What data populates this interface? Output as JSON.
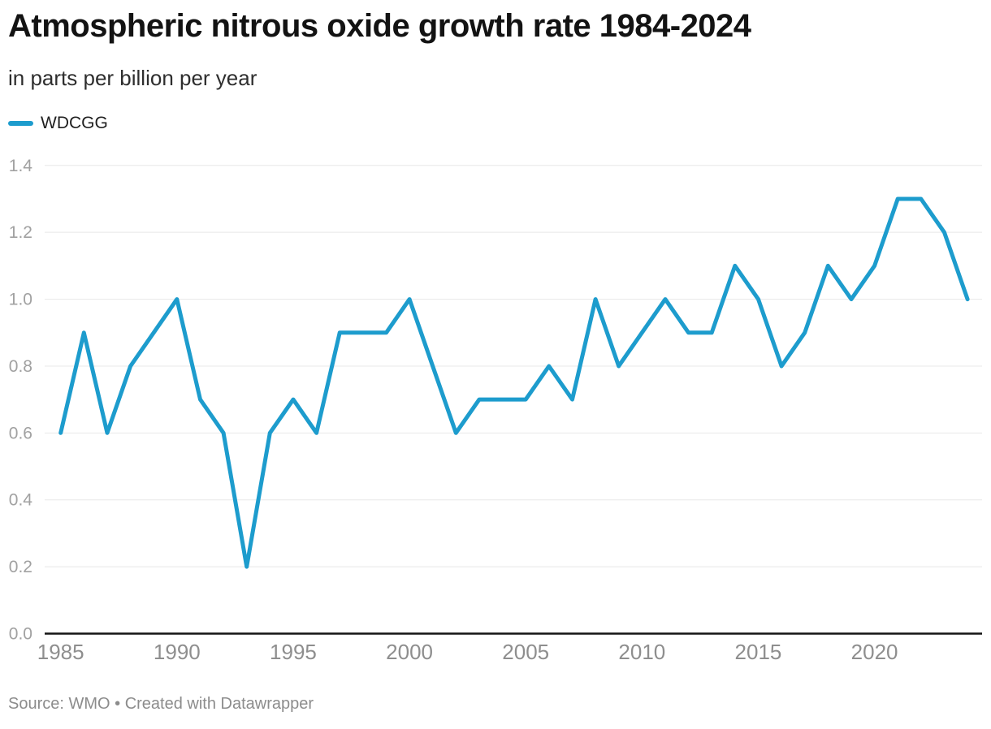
{
  "header": {
    "title": "Atmospheric nitrous oxide growth rate 1984-2024",
    "subtitle": "in parts per billion per year"
  },
  "legend": {
    "items": [
      {
        "label": "WDCGG",
        "color": "#1d9ccd"
      }
    ]
  },
  "chart_data": {
    "type": "line",
    "title": "Atmospheric nitrous oxide growth rate 1984-2024",
    "subtitle": "in parts per billion per year",
    "xlabel": "",
    "ylabel": "in parts per billion per year",
    "x": [
      1985,
      1986,
      1987,
      1988,
      1989,
      1990,
      1991,
      1992,
      1993,
      1994,
      1995,
      1996,
      1997,
      1998,
      1999,
      2000,
      2001,
      2002,
      2003,
      2004,
      2005,
      2006,
      2007,
      2008,
      2009,
      2010,
      2011,
      2012,
      2013,
      2014,
      2015,
      2016,
      2017,
      2018,
      2019,
      2020,
      2021,
      2022,
      2023,
      2024
    ],
    "series": [
      {
        "name": "WDCGG",
        "color": "#1d9ccd",
        "values": [
          0.6,
          0.9,
          0.6,
          0.8,
          0.9,
          1.0,
          0.7,
          0.6,
          0.2,
          0.6,
          0.7,
          0.6,
          0.9,
          0.9,
          0.9,
          1.0,
          0.8,
          0.6,
          0.7,
          0.7,
          0.7,
          0.8,
          0.7,
          1.0,
          0.8,
          0.9,
          1.0,
          0.9,
          0.9,
          1.1,
          1.0,
          0.8,
          0.9,
          1.1,
          1.0,
          1.1,
          1.3,
          1.3,
          1.2,
          1.0
        ]
      }
    ],
    "ylim": [
      0,
      1.4
    ],
    "yticks": [
      0.0,
      0.2,
      0.4,
      0.6,
      0.8,
      1.0,
      1.2,
      1.4
    ],
    "ytick_format": "one_decimal",
    "xticks": [
      1985,
      1990,
      1995,
      2000,
      2005,
      2010,
      2015,
      2020
    ],
    "grid": true,
    "legend_position": "top-left"
  },
  "colors": {
    "accent": "#1d9ccd",
    "grid": "#e8e8e8",
    "baseline": "#141414",
    "y_axis_text": "#a1a1a1",
    "x_axis_text": "#8e8e8e",
    "title_text": "#131313",
    "subtitle_text": "#2e2e2e",
    "footer_text": "#8c8c8c"
  },
  "footer": {
    "text": "Source: WMO • Created with Datawrapper"
  }
}
